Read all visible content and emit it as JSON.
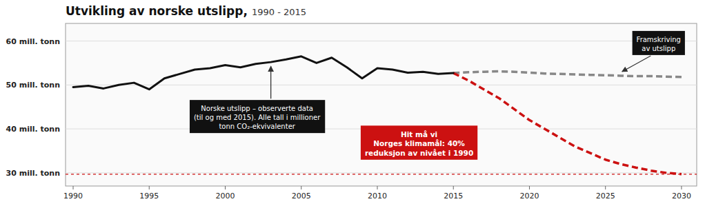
{
  "chart_data": {
    "type": "line",
    "title": "Utvikling av norske utslipp,",
    "subtitle": " 1990 - 2015",
    "xlim": [
      1989.5,
      2031
    ],
    "ylim": [
      27,
      64
    ],
    "xticks": [
      1990,
      1995,
      2000,
      2005,
      2010,
      2015,
      2020,
      2025,
      2030
    ],
    "yticks": [
      {
        "value": 60,
        "label": "60 mill. tonn"
      },
      {
        "value": 50,
        "label": "50 mill. tonn"
      },
      {
        "value": 40,
        "label": "40 mill. tonn"
      },
      {
        "value": 30,
        "label": "30 mill. tonn"
      }
    ],
    "grid": true,
    "series": [
      {
        "x": [
          1990,
          1991,
          1992,
          1993,
          1994,
          1995,
          1996,
          1997,
          1998,
          1999,
          2000,
          2001,
          2002,
          2003,
          2004,
          2005,
          2006,
          2007,
          2008,
          2009,
          2010,
          2011,
          2012,
          2013,
          2014,
          2015
        ],
        "values": [
          49.5,
          49.8,
          49.2,
          50.0,
          50.5,
          49.0,
          51.5,
          52.5,
          53.5,
          53.8,
          54.5,
          54.0,
          54.8,
          55.2,
          55.8,
          56.5,
          55.0,
          56.2,
          54.0,
          51.5,
          53.8,
          53.5,
          52.8,
          53.0,
          52.5,
          52.7
        ],
        "color": "#111111",
        "line_style": "solid"
      },
      {
        "x": [
          2015,
          2016,
          2017,
          2018,
          2019,
          2020,
          2021,
          2022,
          2023,
          2024,
          2025,
          2026,
          2027,
          2028,
          2029,
          2030
        ],
        "values": [
          52.7,
          52.9,
          53.0,
          53.1,
          53.0,
          52.8,
          52.6,
          52.5,
          52.4,
          52.3,
          52.2,
          52.1,
          52.0,
          52.0,
          51.9,
          51.8
        ],
        "color": "#888888",
        "line_style": "dashed"
      },
      {
        "x": [
          2015,
          2016,
          2017,
          2018,
          2019,
          2020,
          2021,
          2022,
          2023,
          2024,
          2025,
          2026,
          2027,
          2028,
          2029,
          2030
        ],
        "values": [
          52.7,
          51.0,
          49.0,
          47.0,
          44.5,
          42.0,
          40.0,
          38.0,
          36.0,
          34.5,
          33.0,
          32.0,
          31.2,
          30.5,
          30.0,
          29.7
        ],
        "color": "#cc1111",
        "line_style": "dashed"
      }
    ],
    "target_line": {
      "value": 29.7,
      "color": "#cc1111",
      "line_style": "dashed"
    },
    "annotations": [
      {
        "text": "Norske utslipp – observerte data\n(til og med 2015). Alle tall i millioner\ntonn CO₂-ekvivalenter",
        "color": "#111111"
      },
      {
        "text": "Framskriving\nav utslipp",
        "color": "#111111"
      },
      {
        "text": "Hit må vi\nNorges klimamål: 40%\nreduksjon av nivået i 1990",
        "color": "#cc1111"
      }
    ]
  }
}
